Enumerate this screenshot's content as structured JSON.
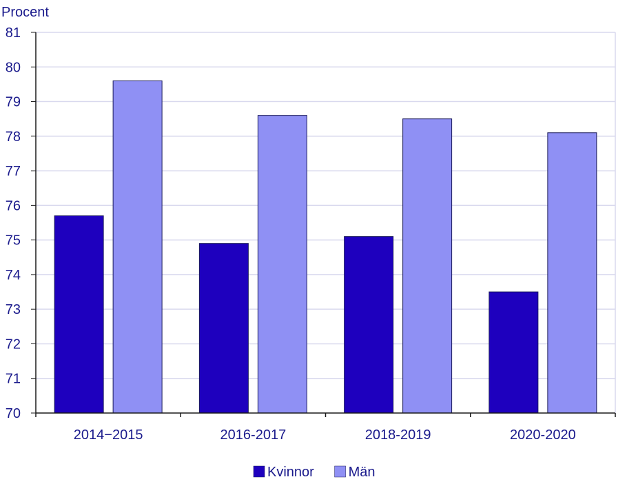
{
  "chart_data": {
    "type": "bar",
    "title": "",
    "ylabel": "Procent",
    "xlabel": "",
    "categories": [
      "2014−2015",
      "2016-2017",
      "2018-2019",
      "2020-2020"
    ],
    "series": [
      {
        "name": "Kvinnor",
        "color": "#1e00be",
        "values": [
          75.7,
          74.9,
          75.1,
          73.5
        ]
      },
      {
        "name": "Män",
        "color": "#8f90f4",
        "values": [
          79.6,
          78.6,
          78.5,
          78.1
        ]
      }
    ],
    "ylim": [
      70,
      81
    ],
    "yticks": [
      "70",
      "71",
      "72",
      "73",
      "74",
      "75",
      "76",
      "77",
      "78",
      "79",
      "80",
      "81"
    ],
    "grid": true,
    "legend_position": "bottom-center",
    "colors": {
      "text": "#1a1a8c",
      "grid": "#d9d9ee",
      "axis": "#1a1a1a",
      "bar_stroke": "#1a1a5a"
    }
  }
}
